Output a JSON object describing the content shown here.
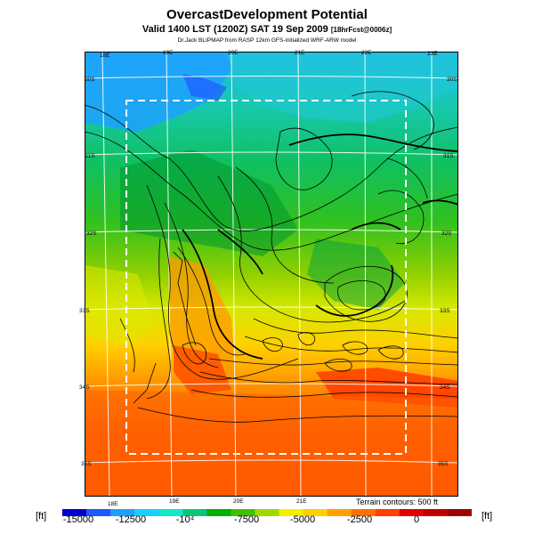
{
  "header": {
    "title": "OvercastDevelopment Potential",
    "subtitle_main": "Valid 1400 LST (1200Z) SAT 19 Sep 2009",
    "subtitle_small": "[18hrFcst@0006z]",
    "credit": "Dr.Jack BLIPMAP from RASP 12km GFS-initialized WRF-ARW model"
  },
  "map": {
    "lon_labels_top": [
      "18E",
      "19E",
      "20E",
      "21E",
      "22E",
      "23E"
    ],
    "lon_labels_bottom": [
      "18E",
      "19E",
      "20E",
      "21E"
    ],
    "lat_labels_left": [
      "30S",
      "31S",
      "32S",
      "33S",
      "34S",
      "35S"
    ],
    "lat_labels_right": [
      "30S",
      "31S",
      "32S",
      "33S",
      "34S",
      "35S"
    ],
    "terrain_note": "Terrain contours: 500 ft"
  },
  "colorbar": {
    "unit_left": "[ft]",
    "unit_right": "[ft]",
    "labels": [
      "-15000",
      "-12500",
      "-10⁴",
      "-7500",
      "-5000",
      "-2500",
      "0"
    ],
    "colors": [
      "#0000cc",
      "#1e5aff",
      "#1fa0ff",
      "#18d0ff",
      "#10e8c8",
      "#08c878",
      "#00b000",
      "#40c000",
      "#a0d800",
      "#f0f000",
      "#ffd000",
      "#ffa000",
      "#ff7000",
      "#ff4000",
      "#e00000",
      "#c00000",
      "#a00000"
    ]
  }
}
